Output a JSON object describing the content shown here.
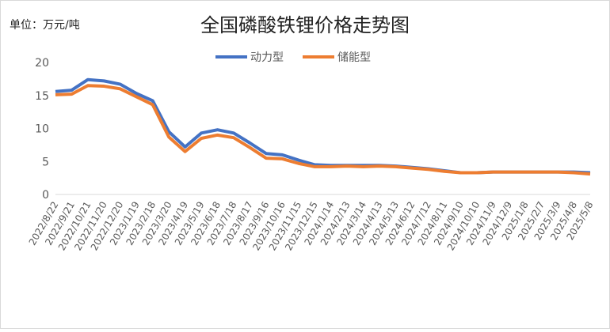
{
  "chart_data": {
    "type": "line",
    "title": "全国磷酸铁锂价格走势图",
    "unit_label": "单位：万元/吨",
    "categories": [
      "2022/8/22",
      "2022/9/21",
      "2022/10/21",
      "2022/11/20",
      "2022/12/20",
      "2023/1/19",
      "2023/2/18",
      "2023/3/20",
      "2023/4/19",
      "2023/5/19",
      "2023/6/18",
      "2023/7/18",
      "2023/8/17",
      "2023/9/16",
      "2023/10/16",
      "2023/11/15",
      "2023/12/15",
      "2024/1/14",
      "2024/2/13",
      "2024/3/14",
      "2024/4/13",
      "2024/5/13",
      "2024/6/12",
      "2024/7/12",
      "2024/8/11",
      "2024/9/10",
      "2024/10/10",
      "2024/11/9",
      "2024/12/9",
      "2025/1/8",
      "2025/2/7",
      "2025/3/9",
      "2025/4/8",
      "2025/5/8"
    ],
    "series": [
      {
        "name": "动力型",
        "color": "#4472c4",
        "values": [
          15.6,
          15.8,
          17.4,
          17.2,
          16.7,
          15.3,
          14.2,
          9.5,
          7.2,
          9.3,
          9.8,
          9.3,
          7.8,
          6.2,
          6.0,
          5.2,
          4.5,
          4.4,
          4.4,
          4.4,
          4.4,
          4.3,
          4.1,
          3.9,
          3.6,
          3.3,
          3.3,
          3.4,
          3.4,
          3.4,
          3.4,
          3.4,
          3.4,
          3.3
        ]
      },
      {
        "name": "储能型",
        "color": "#ed7d31",
        "values": [
          15.1,
          15.2,
          16.5,
          16.4,
          16.0,
          14.8,
          13.6,
          8.7,
          6.5,
          8.5,
          9.0,
          8.6,
          7.1,
          5.5,
          5.4,
          4.7,
          4.2,
          4.2,
          4.3,
          4.2,
          4.3,
          4.2,
          4.0,
          3.8,
          3.5,
          3.3,
          3.3,
          3.4,
          3.4,
          3.4,
          3.4,
          3.4,
          3.3,
          3.1
        ]
      }
    ],
    "ylim": [
      0,
      20
    ],
    "yticks": [
      0,
      5,
      10,
      15,
      20
    ],
    "legend": "top",
    "grid": false
  }
}
